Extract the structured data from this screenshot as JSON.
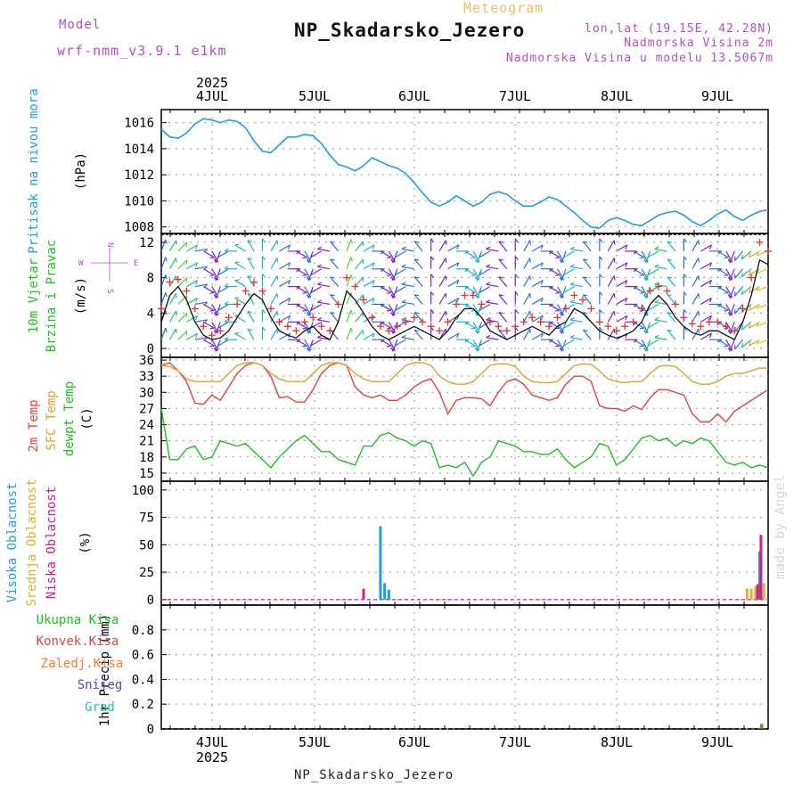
{
  "header": {
    "model_label": "Model",
    "model_name": "wrf-nmm_v3.9.1 e1km",
    "product": "Meteogram",
    "station": "NP_Skadarsko_Jezero",
    "lonlat": "lon,lat (19.15E, 42.28N)",
    "altitude": "Nadmorska Visina 2m",
    "model_altitude": "Nadmorska Visina u modelu 13.5067m",
    "credit": "made by Angel",
    "footer": "NP_Skadarsko_Jezero"
  },
  "time_axis": {
    "year": "2025",
    "day_labels": [
      "4JUL",
      "5JUL",
      "6JUL",
      "7JUL",
      "8JUL",
      "9JUL"
    ],
    "range_hours": [
      -11,
      133
    ]
  },
  "colors": {
    "pressure": "#1f9fe0",
    "temp2m": "#e84040",
    "sfc_temp": "#e0a030",
    "dewpoint": "#20c020",
    "wind_speed": "#111111",
    "wind_gust": "#e83030",
    "cloud_high": "#1f9fe0",
    "cloud_mid": "#e0b030",
    "cloud_low": "#d0208a",
    "precip_total": "#20c020",
    "precip_conv": "#e84040",
    "precip_frz": "#f08030",
    "precip_snow": "#6040e0",
    "precip_grad": "#20c0b0"
  },
  "panels": [
    {
      "id": "pressure",
      "title_lines": [
        "Pritisak na nivou mora"
      ],
      "unit": "(hPa)",
      "title_colors": [
        "#1f9fe0"
      ]
    },
    {
      "id": "wind",
      "title_lines": [
        "10m Vjetar",
        "Brzina i Pravac"
      ],
      "unit": "(m/s)",
      "title_colors": [
        "#20c020",
        "#20c020"
      ],
      "compass": {
        "n": "N",
        "w": "W",
        "e": "E",
        "s": "S"
      }
    },
    {
      "id": "temp",
      "title_lines": [
        "2m Temp",
        "SFC Temp",
        "dewpt Temp"
      ],
      "unit": "(C)",
      "title_colors": [
        "#e84040",
        "#e0a030",
        "#20c020"
      ]
    },
    {
      "id": "cloud",
      "title_lines": [
        "Visoka Oblacnost",
        "Srednja Oblacnost",
        "Niska Oblacnost"
      ],
      "unit": "(%)",
      "title_colors": [
        "#1f9fe0",
        "#e0b030",
        "#d0208a"
      ]
    },
    {
      "id": "precip",
      "title_lines": [],
      "unit": "1hr Precip (mm)"
    }
  ],
  "precip_legend": [
    {
      "label": "Ukupna Kisa",
      "color": "#20c020"
    },
    {
      "label": "Konvek.Kisa",
      "color": "#e84040"
    },
    {
      "label": "Zaledj.Kisa",
      "color": "#f08030"
    },
    {
      "label": "Snijeg",
      "color": "#6040e0"
    },
    {
      "label": "Grad",
      "color": "#20c0b0"
    }
  ],
  "chart_data": [
    {
      "type": "line",
      "id": "pressure",
      "ylabel": "(hPa)",
      "ylim": [
        1007.5,
        1017.0
      ],
      "yticks": [
        "1008",
        "1010",
        "1012",
        "1014",
        "1016"
      ],
      "ytick_values": [
        1008,
        1010,
        1012,
        1014,
        1016
      ],
      "grid": true,
      "x_hours": [
        -11,
        -9,
        -7,
        -5,
        -3,
        -1,
        1,
        3,
        5,
        7,
        9,
        11,
        13,
        15,
        17,
        19,
        21,
        23,
        25,
        27,
        29,
        31,
        33,
        35,
        37,
        39,
        41,
        43,
        45,
        47,
        49,
        51,
        53,
        55,
        57,
        59,
        61,
        63,
        65,
        67,
        69,
        71,
        73,
        75,
        77,
        79,
        81,
        83,
        85,
        87,
        89,
        91,
        93,
        95,
        97,
        99,
        101,
        103,
        105,
        107,
        109,
        111,
        113,
        115,
        117,
        119,
        121,
        123,
        125,
        127,
        129,
        131,
        133
      ],
      "series": [
        {
          "values": [
            1015.5,
            1014.9,
            1014.8,
            1015.2,
            1015.9,
            1016.3,
            1016.2,
            1016.0,
            1016.2,
            1016.1,
            1015.6,
            1014.6,
            1013.8,
            1013.7,
            1014.3,
            1014.9,
            1014.9,
            1015.1,
            1015.0,
            1014.4,
            1013.5,
            1012.8,
            1012.6,
            1012.3,
            1012.7,
            1013.3,
            1013.0,
            1012.7,
            1012.5,
            1012.1,
            1011.4,
            1010.6,
            1009.9,
            1009.6,
            1009.9,
            1010.4,
            1010.0,
            1009.6,
            1009.9,
            1010.5,
            1010.7,
            1010.5,
            1010.0,
            1009.6,
            1009.6,
            1009.9,
            1010.3,
            1010.1,
            1009.6,
            1009.1,
            1008.5,
            1008.0,
            1007.9,
            1008.5,
            1008.7,
            1008.5,
            1008.2,
            1008.1,
            1008.5,
            1008.9,
            1009.1,
            1009.2,
            1008.9,
            1008.4,
            1008.1,
            1008.5,
            1009.0,
            1009.3,
            1008.8,
            1008.5,
            1008.9,
            1009.2,
            1009.3
          ]
        }
      ]
    },
    {
      "type": "line",
      "id": "wind",
      "ylabel": "(m/s)",
      "ylim": [
        -1,
        13
      ],
      "yticks": [
        "0",
        "4",
        "8",
        "12"
      ],
      "ytick_values": [
        0,
        4,
        8,
        12
      ],
      "grid": true,
      "x_hours": [
        -11,
        -9,
        -7,
        -5,
        -3,
        -1,
        1,
        3,
        5,
        7,
        9,
        11,
        13,
        15,
        17,
        19,
        21,
        23,
        25,
        27,
        29,
        31,
        33,
        35,
        37,
        39,
        41,
        43,
        45,
        47,
        49,
        51,
        53,
        55,
        57,
        59,
        61,
        63,
        65,
        67,
        69,
        71,
        73,
        75,
        77,
        79,
        81,
        83,
        85,
        87,
        89,
        91,
        93,
        95,
        97,
        99,
        101,
        103,
        105,
        107,
        109,
        111,
        113,
        115,
        117,
        119,
        121,
        123,
        125,
        127,
        129,
        131,
        133
      ],
      "series": [
        {
          "values": [
            3.0,
            6.0,
            7.0,
            5.5,
            3.0,
            1.5,
            1.0,
            1.2,
            2.0,
            3.5,
            5.0,
            6.2,
            5.5,
            3.5,
            2.0,
            1.5,
            1.2,
            2.0,
            2.5,
            1.5,
            1.0,
            3.0,
            6.5,
            5.5,
            4.0,
            2.5,
            1.5,
            1.0,
            1.5,
            2.0,
            2.5,
            2.0,
            1.5,
            1.0,
            2.0,
            3.5,
            4.5,
            4.5,
            3.5,
            2.0,
            1.5,
            1.0,
            1.5,
            2.0,
            2.5,
            2.0,
            1.5,
            2.5,
            3.0,
            4.5,
            4.0,
            3.0,
            2.0,
            1.5,
            1.2,
            1.5,
            2.0,
            3.0,
            5.0,
            6.0,
            5.0,
            3.5,
            2.5,
            1.8,
            1.5,
            2.0,
            2.0,
            1.5,
            1.0,
            3.0,
            6.0,
            10.0,
            9.5
          ]
        },
        {
          "values": [
            4.5,
            7.5,
            7.8,
            6.5,
            4.5,
            2.5,
            1.5,
            2.0,
            3.5,
            5.0,
            6.5,
            7.5,
            6.5,
            4.5,
            3.0,
            2.5,
            2.0,
            3.0,
            3.5,
            2.5,
            2.0,
            5.0,
            8.0,
            7.0,
            5.5,
            3.5,
            2.5,
            2.0,
            2.5,
            3.0,
            3.5,
            3.0,
            2.5,
            2.0,
            3.0,
            5.0,
            6.0,
            6.0,
            5.0,
            3.0,
            2.5,
            2.0,
            2.5,
            3.0,
            3.5,
            3.0,
            2.5,
            3.5,
            4.5,
            6.0,
            5.5,
            4.5,
            3.0,
            2.5,
            2.0,
            2.5,
            3.0,
            4.5,
            6.5,
            7.0,
            6.5,
            5.0,
            3.5,
            2.8,
            2.5,
            3.0,
            3.0,
            2.5,
            2.0,
            4.5,
            8.0,
            12.0,
            11.0
          ]
        }
      ],
      "wind_dir_deg": [
        200,
        210,
        225,
        240,
        260,
        300,
        330,
        20,
        60,
        90,
        120,
        150,
        180,
        210,
        240,
        270,
        300,
        330,
        20,
        60,
        100,
        140,
        200,
        220,
        240,
        270,
        300,
        330,
        20,
        60,
        100,
        140,
        180,
        210,
        240,
        270,
        300,
        330,
        20,
        60,
        100,
        140,
        180,
        210,
        240,
        270,
        300,
        330,
        20,
        60,
        100,
        140,
        180,
        210,
        240,
        270,
        300,
        330,
        20,
        60,
        100,
        140,
        180,
        210,
        240,
        270,
        300,
        330,
        20,
        40,
        50,
        60,
        70
      ],
      "wind_level_ms": [
        11,
        9,
        7,
        5,
        3,
        1
      ]
    },
    {
      "type": "line",
      "id": "temp",
      "ylabel": "(C)",
      "ylim": [
        13.5,
        36.5
      ],
      "yticks": [
        "15",
        "18",
        "21",
        "24",
        "27",
        "30",
        "33",
        "36"
      ],
      "ytick_values": [
        15,
        18,
        21,
        24,
        27,
        30,
        33,
        36
      ],
      "grid": true,
      "x_hours": [
        -11,
        -9,
        -7,
        -5,
        -3,
        -1,
        1,
        3,
        5,
        7,
        9,
        11,
        13,
        15,
        17,
        19,
        21,
        23,
        25,
        27,
        29,
        31,
        33,
        35,
        37,
        39,
        41,
        43,
        45,
        47,
        49,
        51,
        53,
        55,
        57,
        59,
        61,
        63,
        65,
        67,
        69,
        71,
        73,
        75,
        77,
        79,
        81,
        83,
        85,
        87,
        89,
        91,
        93,
        95,
        97,
        99,
        101,
        103,
        105,
        107,
        109,
        111,
        113,
        115,
        117,
        119,
        121,
        123,
        125,
        127,
        129,
        131,
        133
      ],
      "series": [
        {
          "name": "2m Temp",
          "values": [
            35.0,
            35.5,
            34.0,
            32.0,
            28.0,
            27.8,
            29.5,
            28.5,
            31.0,
            33.5,
            35.0,
            35.5,
            35.0,
            33.0,
            29.0,
            29.2,
            28.2,
            28.2,
            30.5,
            33.5,
            35.0,
            35.5,
            35.0,
            31.0,
            29.5,
            29.0,
            29.5,
            28.5,
            28.5,
            29.5,
            31.0,
            32.0,
            32.5,
            30.0,
            26.0,
            28.5,
            29.0,
            29.0,
            28.8,
            27.5,
            30.0,
            32.0,
            32.5,
            31.5,
            29.5,
            29.0,
            28.5,
            29.0,
            31.5,
            33.0,
            33.0,
            32.0,
            27.5,
            27.0,
            27.0,
            26.5,
            27.5,
            26.8,
            29.0,
            30.5,
            30.5,
            30.0,
            29.5,
            26.0,
            24.5,
            24.5,
            26.0,
            24.5,
            26.5,
            27.5,
            28.5,
            29.5,
            30.5
          ]
        },
        {
          "name": "SFC Temp",
          "values": [
            35.0,
            34.8,
            34.0,
            32.5,
            32.0,
            32.0,
            32.0,
            32.0,
            33.5,
            35.0,
            35.5,
            35.5,
            35.0,
            33.5,
            32.5,
            32.0,
            32.0,
            32.0,
            33.5,
            35.0,
            35.5,
            35.5,
            35.0,
            33.5,
            32.5,
            32.0,
            32.0,
            32.0,
            33.5,
            35.0,
            35.5,
            35.5,
            35.0,
            33.0,
            32.0,
            31.5,
            31.5,
            32.0,
            33.5,
            35.0,
            35.3,
            35.3,
            34.8,
            33.0,
            32.0,
            31.8,
            31.8,
            32.0,
            33.5,
            35.0,
            35.3,
            35.2,
            34.0,
            32.5,
            32.0,
            31.8,
            32.0,
            32.0,
            33.5,
            34.8,
            35.0,
            34.8,
            33.5,
            32.0,
            31.5,
            31.5,
            32.0,
            33.0,
            33.5,
            33.5,
            34.0,
            34.5,
            34.5
          ]
        },
        {
          "name": "dewpt Temp",
          "values": [
            27.0,
            17.5,
            17.5,
            19.5,
            20.0,
            17.5,
            18.0,
            21.0,
            20.5,
            20.0,
            20.5,
            19.0,
            17.5,
            16.0,
            18.0,
            19.5,
            21.0,
            22.0,
            20.5,
            19.0,
            19.0,
            17.5,
            17.0,
            16.5,
            20.0,
            20.0,
            22.0,
            22.5,
            21.5,
            21.0,
            20.0,
            21.0,
            20.5,
            16.0,
            16.5,
            16.0,
            17.0,
            14.5,
            17.0,
            18.0,
            21.0,
            20.5,
            20.0,
            19.0,
            19.0,
            18.5,
            18.5,
            19.5,
            17.5,
            16.0,
            17.0,
            18.0,
            20.5,
            20.0,
            16.5,
            17.5,
            19.5,
            21.5,
            22.0,
            21.0,
            21.5,
            20.0,
            21.0,
            20.5,
            21.5,
            21.0,
            19.0,
            17.0,
            16.5,
            17.0,
            16.0,
            16.5,
            16.0
          ]
        }
      ]
    },
    {
      "type": "bar",
      "id": "cloud",
      "ylabel": "(%)",
      "ylim": [
        -5,
        108
      ],
      "yticks": [
        "0",
        "25",
        "50",
        "75",
        "100"
      ],
      "ytick_values": [
        0,
        25,
        50,
        75,
        100
      ],
      "grid": true,
      "series": [
        {
          "name": "Visoka Oblacnost",
          "x_hours": [
            41,
            42,
            43,
            131
          ],
          "values": [
            67,
            15,
            9,
            44
          ]
        },
        {
          "name": "Srednja Oblacnost",
          "x_hours": [
            128,
            129,
            130,
            132
          ],
          "values": [
            10,
            10,
            12,
            15
          ]
        },
        {
          "name": "Niska Oblacnost",
          "x_hours": [
            37,
            130.5,
            131.3
          ],
          "values": [
            10,
            14,
            59
          ]
        }
      ]
    },
    {
      "type": "bar",
      "id": "precip",
      "ylabel": "1hr Precip (mm)",
      "ylim": [
        0,
        1.0
      ],
      "yticks": [
        "0",
        "0.2",
        "0.4",
        "0.6",
        "0.8"
      ],
      "ytick_values": [
        0,
        0.2,
        0.4,
        0.6,
        0.8
      ],
      "grid": true,
      "series": [
        {
          "name": "Ukupna Kisa",
          "x_hours": [
            131.3
          ],
          "values": [
            0.04
          ]
        },
        {
          "name": "Konvek.Kisa",
          "x_hours": [
            131.3
          ],
          "values": [
            0.04
          ]
        }
      ]
    }
  ]
}
